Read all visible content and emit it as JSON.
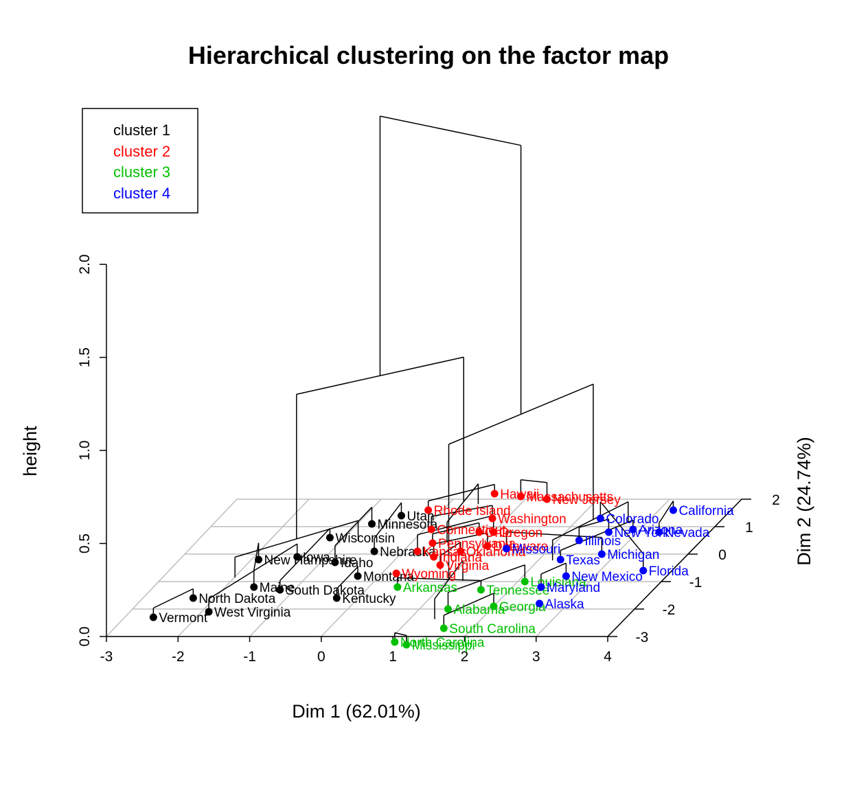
{
  "chart_data": {
    "type": "scatter",
    "title": "Hierarchical clustering on the factor map",
    "xlabel": "Dim 1 (62.01%)",
    "ylabel": "Dim 2 (24.74%)",
    "zlabel": "height",
    "x_ticks": [
      "-3",
      "-2",
      "-1",
      "0",
      "1",
      "2",
      "3",
      "4"
    ],
    "y_ticks": [
      "-3",
      "-2",
      "-1",
      "0",
      "1",
      "2"
    ],
    "z_ticks": [
      "0.0",
      "0.5",
      "1.0",
      "1.5",
      "2.0"
    ],
    "legend": {
      "entries": [
        {
          "label": "cluster 1",
          "color": "#000000"
        },
        {
          "label": "cluster 2",
          "color": "#ff0000"
        },
        {
          "label": "cluster 3",
          "color": "#00c000"
        },
        {
          "label": "cluster 4",
          "color": "#0000ff"
        }
      ],
      "position": "top-left"
    },
    "series": [
      {
        "name": "cluster 1",
        "color": "#000000",
        "points": [
          {
            "label": "North Dakota",
            "x": -2.3,
            "y": -1.6
          },
          {
            "label": "Vermont",
            "x": -2.6,
            "y": -2.3
          },
          {
            "label": "New Hampshire",
            "x": -1.9,
            "y": -0.2
          },
          {
            "label": "Maine",
            "x": -1.6,
            "y": -1.2
          },
          {
            "label": "West Virginia",
            "x": -1.9,
            "y": -2.1
          },
          {
            "label": "Iowa",
            "x": -1.4,
            "y": -0.1
          },
          {
            "label": "South Dakota",
            "x": -1.2,
            "y": -1.3
          },
          {
            "label": "Wisconsin",
            "x": -1.2,
            "y": 0.6
          },
          {
            "label": "Minnesota",
            "x": -0.8,
            "y": 1.1
          },
          {
            "label": "Idaho",
            "x": -0.8,
            "y": -0.3
          },
          {
            "label": "Nebraska",
            "x": -0.4,
            "y": 0.1
          },
          {
            "label": "Utah",
            "x": -0.5,
            "y": 1.4
          },
          {
            "label": "Montana",
            "x": -0.3,
            "y": -0.8
          },
          {
            "label": "Kentucky",
            "x": -0.3,
            "y": -1.6
          }
        ]
      },
      {
        "name": "cluster 2",
        "color": "#ff0000",
        "points": [
          {
            "label": "Hawaii",
            "x": 0.5,
            "y": 2.2
          },
          {
            "label": "Rhode Island",
            "x": -0.2,
            "y": 1.6
          },
          {
            "label": "Massachusetts",
            "x": 0.9,
            "y": 2.1
          },
          {
            "label": "New Jersey",
            "x": 1.3,
            "y": 2.0
          },
          {
            "label": "Connecticut",
            "x": 0.1,
            "y": 0.9
          },
          {
            "label": "Washington",
            "x": 0.8,
            "y": 1.3
          },
          {
            "label": "Ohio",
            "x": 0.8,
            "y": 0.8
          },
          {
            "label": "Pennsylvania",
            "x": 0.3,
            "y": 0.4
          },
          {
            "label": "Oregon",
            "x": 1.0,
            "y": 0.8
          },
          {
            "label": "Kansas",
            "x": 0.2,
            "y": 0.1
          },
          {
            "label": "Delaware",
            "x": 1.1,
            "y": 0.3
          },
          {
            "label": "Indiana",
            "x": 0.5,
            "y": -0.1
          },
          {
            "label": "Oklahoma",
            "x": 0.8,
            "y": 0.1
          },
          {
            "label": "Virginia",
            "x": 0.7,
            "y": -0.4
          },
          {
            "label": "Wyoming",
            "x": 0.2,
            "y": -0.7
          }
        ]
      },
      {
        "name": "cluster 3",
        "color": "#00c000",
        "points": [
          {
            "label": "Arkansas",
            "x": 0.4,
            "y": -1.2
          },
          {
            "label": "Tennessee",
            "x": 1.6,
            "y": -1.3
          },
          {
            "label": "Louisiana",
            "x": 2.1,
            "y": -1.0
          },
          {
            "label": "Alabama",
            "x": 1.4,
            "y": -2.0
          },
          {
            "label": "Georgia",
            "x": 2.0,
            "y": -1.9
          },
          {
            "label": "South Carolina",
            "x": 1.6,
            "y": -2.7
          },
          {
            "label": "North Carolina",
            "x": 1.1,
            "y": -3.2
          },
          {
            "label": "Mississippi",
            "x": 1.3,
            "y": -3.3
          }
        ]
      },
      {
        "name": "cluster 4",
        "color": "#0000ff",
        "points": [
          {
            "label": "California",
            "x": 3.2,
            "y": 1.6
          },
          {
            "label": "Nevada",
            "x": 3.3,
            "y": 0.8
          },
          {
            "label": "Florida",
            "x": 3.6,
            "y": -0.6
          },
          {
            "label": "Colorado",
            "x": 2.3,
            "y": 1.3
          },
          {
            "label": "New York",
            "x": 2.6,
            "y": 0.8
          },
          {
            "label": "Illinois",
            "x": 2.3,
            "y": 0.5
          },
          {
            "label": "Arizona",
            "x": 2.9,
            "y": 0.9
          },
          {
            "label": "Texas",
            "x": 2.3,
            "y": -0.2
          },
          {
            "label": "Michigan",
            "x": 2.8,
            "y": 0.0
          },
          {
            "label": "Missouri",
            "x": 1.4,
            "y": 0.2
          },
          {
            "label": "New Mexico",
            "x": 2.6,
            "y": -0.8
          },
          {
            "label": "Maryland",
            "x": 2.4,
            "y": -1.2
          },
          {
            "label": "Alaska",
            "x": 2.6,
            "y": -1.8
          }
        ]
      }
    ]
  }
}
